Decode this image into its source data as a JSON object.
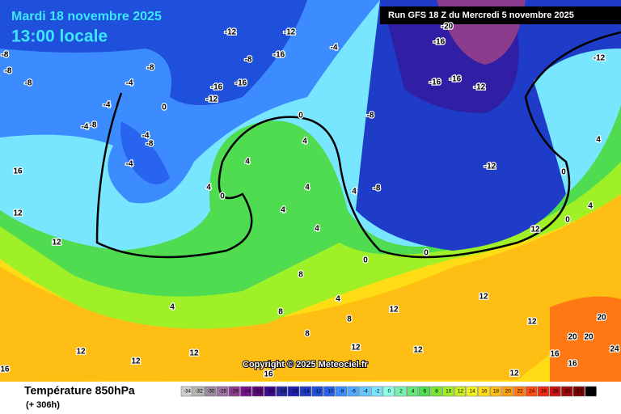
{
  "header": {
    "date": "Mardi 18 novembre 2025",
    "time": "13:00 locale",
    "run": "Run GFS 18 Z du Mercredi 5 novembre 2025"
  },
  "copyright": "Copyright © 2025 Meteociel.fr",
  "footer": {
    "title": "Température 850hPa",
    "lead": "(+ 306h)"
  },
  "legend": {
    "labels": [
      "-34",
      "-32",
      "-30",
      "-28",
      "-26",
      "-24",
      "-22",
      "-20",
      "-18",
      "-16",
      "-14",
      "-12",
      "-10",
      "-8",
      "-6",
      "-4",
      "-2",
      "0",
      "2",
      "4",
      "6",
      "8",
      "10",
      "12",
      "14",
      "16",
      "18",
      "20",
      "22",
      "24",
      "26",
      "28",
      "30",
      "32",
      "34"
    ],
    "colors": [
      "#d0d0d0",
      "#b4b4b4",
      "#9a8aa0",
      "#a070a0",
      "#8c3c8c",
      "#78148c",
      "#5a0a78",
      "#3c0a8c",
      "#2828a0",
      "#1e1eb4",
      "#1e3cc8",
      "#1e50dc",
      "#2864f0",
      "#3c8cff",
      "#50aaff",
      "#64c8ff",
      "#78e6ff",
      "#8cffe6",
      "#78f0b4",
      "#64e678",
      "#50dc50",
      "#78e632",
      "#a0f028",
      "#c8f01e",
      "#f0f01e",
      "#ffdc14",
      "#ffbe14",
      "#ffa014",
      "#ff7814",
      "#ff5014",
      "#f02814",
      "#c81414",
      "#a00a0a",
      "#780000",
      "#000000"
    ]
  },
  "map_labels": [
    "-8",
    "-8",
    "-8",
    "-4",
    "-8",
    "-4",
    "-4",
    "-8",
    "-4",
    "-8",
    "-4",
    "0",
    "4",
    "0",
    "4",
    "0",
    "4",
    "4",
    "4",
    "4",
    "4",
    "-8",
    "-8",
    "0",
    "0",
    "-12",
    "-16",
    "-16",
    "-12",
    "-16",
    "-8",
    "-4",
    "-16",
    "-16",
    "-12",
    "-12",
    "-16",
    "-20",
    "12",
    "12",
    "16",
    "12",
    "12",
    "12",
    "12",
    "12",
    "12",
    "16",
    "16",
    "20",
    "20",
    "20",
    "24",
    "8",
    "8",
    "8",
    "8",
    "12",
    "4",
    "16",
    "16",
    "12",
    "12",
    "12",
    "4",
    "0",
    "0",
    "4",
    "4",
    "-12",
    "-12"
  ]
}
